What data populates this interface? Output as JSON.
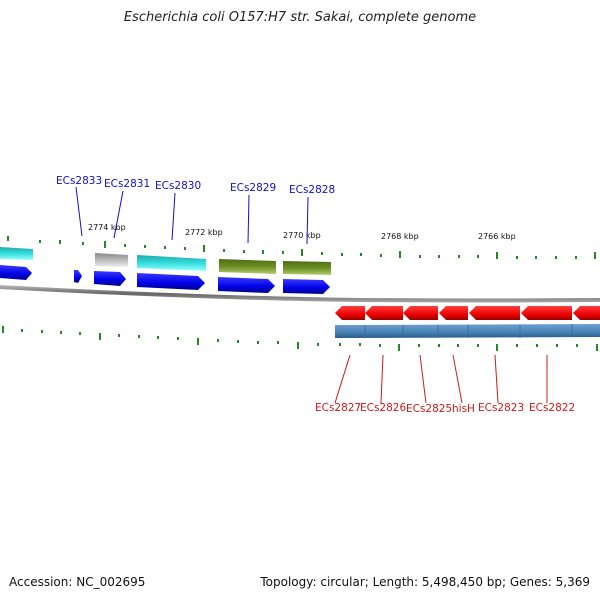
{
  "title": "Escherichia coli O157:H7 str. Sakai, complete genome",
  "footer": {
    "accession": "Accession: NC_002695",
    "summary": "Topology: circular; Length: 5,498,450 bp; Genes: 5,369"
  },
  "colors": {
    "forward_cds": "#1111ee",
    "reverse_cds": "#ee1111",
    "cyan_feature": "#22cccc",
    "olive_feature": "#6b8e23",
    "gray_feature": "#bbbbbb",
    "steel_feature": "#4682b4",
    "backbone": "#888888",
    "tick": "#228b22",
    "forward_label": "#1010c8",
    "reverse_label": "#d01818"
  },
  "scale_labels": [
    "2774 kbp",
    "2772 kbp",
    "2770 kbp",
    "2768 kbp",
    "2766 kbp"
  ],
  "forward_genes": [
    "ECs2833",
    "ECs2831",
    "ECs2830",
    "ECs2829",
    "ECs2828"
  ],
  "reverse_genes": [
    "ECs2827",
    "ECs2826",
    "ECs2825",
    "hisH",
    "ECs2823",
    "ECs2822"
  ]
}
